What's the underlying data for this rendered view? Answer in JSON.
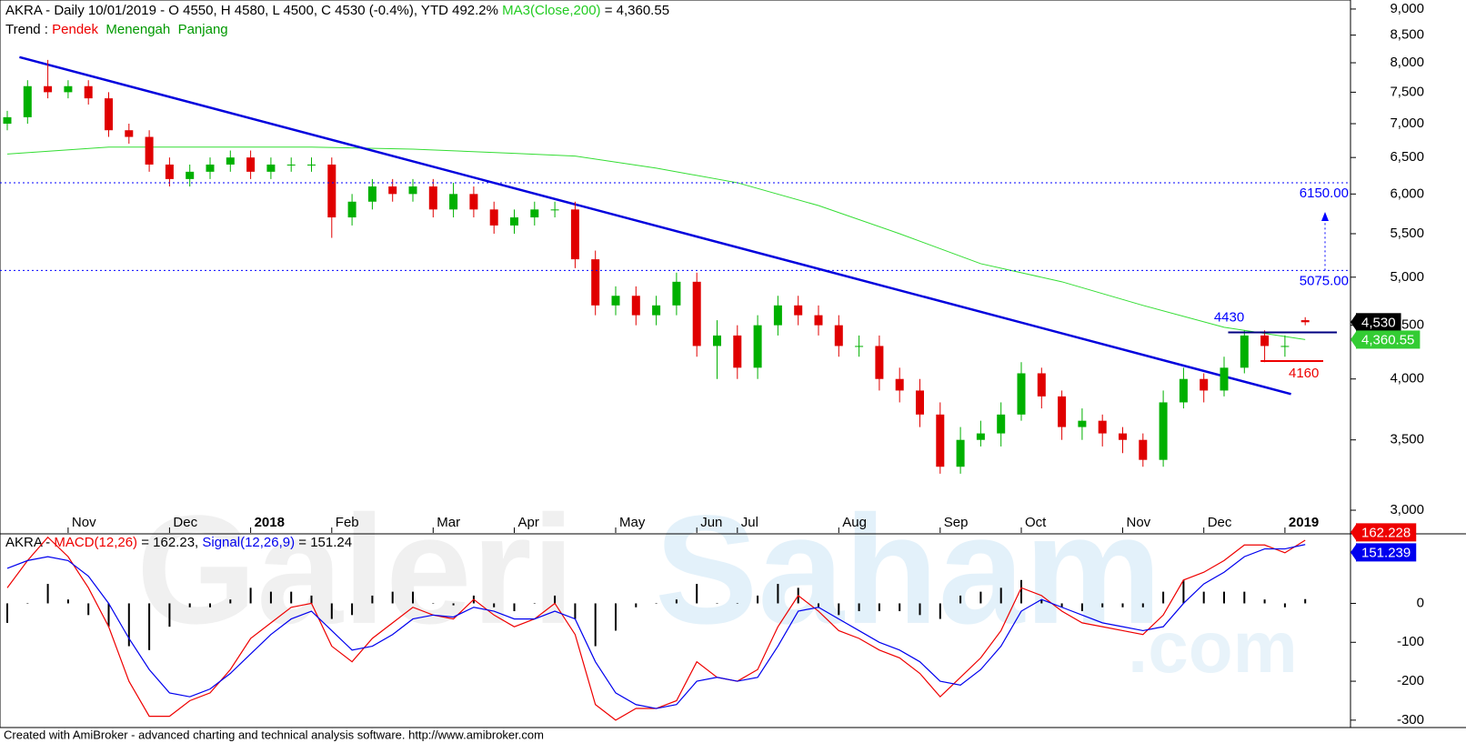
{
  "chart_data": [
    {
      "type": "candlestick",
      "title_parts": [
        {
          "text": "AKRA - Daily 10/01/2019 - O 4550, H 4580, L 4500, C 4530 (-0.4%), YTD 492.2% ",
          "color": "#000000"
        },
        {
          "text": "MA3(Close,200)",
          "color": "#22cc22"
        },
        {
          "text": " = 4,360.55",
          "color": "#000000"
        }
      ],
      "trend_parts": [
        {
          "text": "Trend : ",
          "color": "#000000"
        },
        {
          "text": "Pendek",
          "color": "#ee0000"
        },
        {
          "text": "  Menengah",
          "color": "#009900"
        },
        {
          "text": "  Panjang",
          "color": "#009900"
        }
      ],
      "categories": [
        null,
        null,
        null,
        "Nov",
        null,
        null,
        null,
        null,
        "Dec",
        null,
        null,
        null,
        "2018",
        null,
        null,
        null,
        "Feb",
        null,
        null,
        null,
        null,
        "Mar",
        null,
        null,
        null,
        "Apr",
        null,
        null,
        null,
        null,
        "May",
        null,
        null,
        null,
        "Jun",
        null,
        "Jul",
        null,
        null,
        null,
        null,
        "Aug",
        null,
        null,
        null,
        null,
        "Sep",
        null,
        null,
        null,
        "Oct",
        null,
        null,
        null,
        null,
        "Nov",
        null,
        null,
        null,
        "Dec",
        null,
        null,
        null,
        "2019",
        null
      ],
      "open": [
        7000,
        7100,
        7600,
        7500,
        7600,
        7400,
        6900,
        6800,
        6400,
        6200,
        6300,
        6400,
        6500,
        6300,
        6400,
        6400,
        6400,
        5700,
        5900,
        6100,
        6000,
        6100,
        5800,
        6000,
        5800,
        5600,
        5700,
        5800,
        5800,
        5200,
        4700,
        4800,
        4600,
        4700,
        4950,
        4300,
        4400,
        4100,
        4500,
        4700,
        4600,
        4500,
        4300,
        4300,
        4000,
        3900,
        3700,
        3300,
        3500,
        3550,
        3700,
        4050,
        3850,
        3600,
        3650,
        3550,
        3500,
        3350,
        3800,
        4000,
        3900,
        4100,
        4400,
        4300,
        4550
      ],
      "high": [
        7200,
        7700,
        8050,
        7700,
        7700,
        7500,
        7000,
        6900,
        6500,
        6400,
        6500,
        6600,
        6600,
        6500,
        6500,
        6500,
        6500,
        6000,
        6200,
        6200,
        6200,
        6200,
        6150,
        6100,
        5900,
        5800,
        5900,
        5900,
        5900,
        5300,
        4900,
        4900,
        4800,
        5050,
        5050,
        4550,
        4500,
        4600,
        4800,
        4800,
        4700,
        4600,
        4400,
        4400,
        4100,
        4000,
        3800,
        3600,
        3650,
        3800,
        4150,
        4100,
        3900,
        3750,
        3700,
        3600,
        3550,
        3900,
        4100,
        4050,
        4200,
        4450,
        4450,
        4400,
        4580
      ],
      "low": [
        6900,
        7000,
        7400,
        7400,
        7300,
        6800,
        6700,
        6300,
        6100,
        6100,
        6200,
        6300,
        6200,
        6200,
        6300,
        6300,
        5450,
        5600,
        5800,
        5900,
        5900,
        5700,
        5700,
        5700,
        5500,
        5500,
        5600,
        5700,
        5100,
        4600,
        4600,
        4500,
        4500,
        4600,
        4200,
        4000,
        4000,
        4000,
        4400,
        4500,
        4400,
        4200,
        4200,
        3900,
        3800,
        3600,
        3250,
        3250,
        3450,
        3450,
        3650,
        3750,
        3500,
        3500,
        3450,
        3400,
        3300,
        3300,
        3750,
        3800,
        3850,
        4050,
        4150,
        4200,
        4500
      ],
      "close": [
        7100,
        7600,
        7500,
        7600,
        7400,
        6900,
        6800,
        6400,
        6200,
        6300,
        6400,
        6500,
        6300,
        6400,
        6400,
        6400,
        5700,
        5900,
        6100,
        6000,
        6100,
        5800,
        6000,
        5800,
        5600,
        5700,
        5800,
        5800,
        5200,
        4700,
        4800,
        4600,
        4700,
        4950,
        4300,
        4400,
        4100,
        4500,
        4700,
        4600,
        4500,
        4300,
        4300,
        4000,
        3900,
        3700,
        3300,
        3500,
        3550,
        3700,
        4050,
        3850,
        3600,
        3650,
        3550,
        3500,
        3350,
        3800,
        4000,
        3900,
        4100,
        4400,
        4300,
        4300,
        4530
      ],
      "up_color": "#00b000",
      "down_color": "#e00000",
      "log_scale": true,
      "ylim": [
        2860,
        9180
      ],
      "yticks": [
        {
          "value": 3000,
          "label": "3,000"
        },
        {
          "value": 3500,
          "label": "3,500"
        },
        {
          "value": 4000,
          "label": "4,000"
        },
        {
          "value": 4500,
          "label": "4,500"
        },
        {
          "value": 5000,
          "label": "5,000"
        },
        {
          "value": 5500,
          "label": "5,500"
        },
        {
          "value": 6000,
          "label": "6,000"
        },
        {
          "value": 6500,
          "label": "6,500"
        },
        {
          "value": 7000,
          "label": "7,000"
        },
        {
          "value": 7500,
          "label": "7,500"
        },
        {
          "value": 8000,
          "label": "8,000"
        },
        {
          "value": 8500,
          "label": "8,500"
        },
        {
          "value": 9000,
          "label": "9,000"
        }
      ],
      "overlays": [
        {
          "color": "#33dd33",
          "x": [
            0,
            5,
            10,
            15,
            20,
            25,
            28,
            32,
            36,
            40,
            44,
            48,
            52,
            56,
            60,
            64
          ],
          "values": [
            6550,
            6650,
            6650,
            6650,
            6620,
            6560,
            6520,
            6350,
            6150,
            5850,
            5500,
            5150,
            4950,
            4700,
            4480,
            4360.55
          ]
        },
        {
          "color": "#0000dd",
          "x": [
            0.6,
            63.3
          ],
          "values": [
            8100,
            3870
          ]
        }
      ],
      "levels": [
        {
          "value": 6150,
          "label": "6150.00",
          "color": "#0000ff"
        },
        {
          "value": 5075,
          "label": "5075.00",
          "color": "#0000ff"
        },
        {
          "value": 4430,
          "label": "4430",
          "color": "#0000ff"
        },
        {
          "value": 4160,
          "label": "4160",
          "color": "#ee0000"
        }
      ],
      "price_labels": [
        {
          "value": 4530,
          "label": "4,530",
          "color": "#000000"
        },
        {
          "value": 4360.55,
          "label": "4,360.55",
          "color": "#33cc33"
        }
      ]
    },
    {
      "type": "macd",
      "title_parts": [
        {
          "text": "AKRA - ",
          "color": "#000000"
        },
        {
          "text": "MACD(12,26)",
          "color": "#ee0000"
        },
        {
          "text": " = 162.23, ",
          "color": "#000000"
        },
        {
          "text": "Signal(12,26,9)",
          "color": "#0000ee"
        },
        {
          "text": " = 151.24",
          "color": "#000000"
        }
      ],
      "series": [
        {
          "color": "#ee0000",
          "last_value": 162.228,
          "values": [
            40,
            110,
            170,
            120,
            40,
            -60,
            -200,
            -290,
            -290,
            -250,
            -230,
            -170,
            -90,
            -50,
            -10,
            0,
            -110,
            -150,
            -90,
            -50,
            -10,
            -30,
            -40,
            10,
            -30,
            -60,
            -40,
            0,
            -80,
            -260,
            -300,
            -270,
            -270,
            -250,
            -150,
            -190,
            -200,
            -170,
            -60,
            20,
            -20,
            -70,
            -90,
            -120,
            -140,
            -180,
            -240,
            -190,
            -140,
            -70,
            40,
            20,
            -20,
            -50,
            -60,
            -70,
            -80,
            -30,
            60,
            80,
            110,
            150,
            150,
            130,
            162.23
          ]
        },
        {
          "color": "#0000ee",
          "last_value": 151.239,
          "values": [
            90,
            110,
            120,
            110,
            70,
            0,
            -90,
            -170,
            -230,
            -240,
            -220,
            -180,
            -130,
            -80,
            -40,
            -20,
            -70,
            -120,
            -110,
            -80,
            -40,
            -30,
            -35,
            -10,
            -20,
            -40,
            -40,
            -20,
            -40,
            -150,
            -230,
            -260,
            -270,
            -260,
            -200,
            -190,
            -200,
            -190,
            -110,
            -20,
            -10,
            -40,
            -70,
            -100,
            -120,
            -150,
            -200,
            -210,
            -170,
            -110,
            -20,
            10,
            -10,
            -30,
            -50,
            -60,
            -70,
            -60,
            0,
            50,
            80,
            120,
            140,
            140,
            151.24
          ]
        }
      ],
      "histogram": {
        "color": "#000000",
        "values": [
          -50,
          0,
          50,
          10,
          -30,
          -60,
          -110,
          -120,
          -60,
          -10,
          -10,
          10,
          40,
          30,
          30,
          20,
          -40,
          -30,
          20,
          30,
          30,
          0,
          -5,
          20,
          -10,
          -20,
          0,
          20,
          -40,
          -110,
          -70,
          -10,
          0,
          10,
          50,
          0,
          0,
          20,
          50,
          40,
          -10,
          -30,
          -20,
          -20,
          -20,
          -30,
          -40,
          20,
          30,
          40,
          60,
          10,
          -10,
          -20,
          -10,
          -10,
          -10,
          30,
          60,
          30,
          30,
          30,
          10,
          -10,
          11
        ]
      },
      "ylim": [
        -319,
        174
      ],
      "yticks": [
        -300,
        -200,
        -100,
        0
      ]
    }
  ],
  "watermark": {
    "left": "Galeri",
    "right": "Saham",
    "suffix": ".com"
  },
  "footer": "Created with AmiBroker - advanced charting and technical analysis software. http://www.amibroker.com"
}
